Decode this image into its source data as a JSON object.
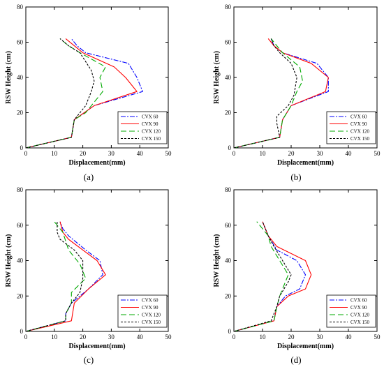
{
  "figure": {
    "panel_captions": [
      "(a)",
      "(b)",
      "(c)",
      "(d)"
    ]
  },
  "chart_data": [
    {
      "type": "line",
      "panel": "(a)",
      "xlabel": "Displacement(mm)",
      "ylabel": "RSW  Height (cm)",
      "xlim": [
        0,
        50
      ],
      "ylim": [
        0,
        80
      ],
      "xticks": [
        0,
        10,
        20,
        30,
        40,
        50
      ],
      "yticks": [
        0,
        20,
        40,
        60,
        80
      ],
      "legend_position": "bottom-right",
      "series": [
        {
          "name": "CVX 60",
          "color": "#0000ff",
          "dash": "dashdot",
          "points": [
            [
              0,
              0
            ],
            [
              16,
              6
            ],
            [
              17,
              16
            ],
            [
              24,
              24
            ],
            [
              41,
              32
            ],
            [
              39,
              40
            ],
            [
              36,
              48
            ],
            [
              21,
              54
            ],
            [
              18,
              58
            ],
            [
              16,
              62
            ]
          ]
        },
        {
          "name": "CVX 90",
          "color": "#ff0000",
          "dash": "solid",
          "points": [
            [
              0,
              0
            ],
            [
              16,
              6
            ],
            [
              17,
              16
            ],
            [
              24,
              24
            ],
            [
              39,
              32
            ],
            [
              35,
              40
            ],
            [
              31,
              46
            ],
            [
              20,
              54
            ],
            [
              17,
              58
            ],
            [
              14,
              62
            ]
          ]
        },
        {
          "name": "CVX 120",
          "color": "#00aa00",
          "dash": "longdash",
          "points": [
            [
              0,
              0
            ],
            [
              16,
              6
            ],
            [
              17,
              16
            ],
            [
              21,
              20
            ],
            [
              27,
              32
            ],
            [
              26,
              40
            ],
            [
              28,
              46
            ],
            [
              19,
              54
            ],
            [
              15,
              58
            ],
            [
              12,
              62
            ]
          ]
        },
        {
          "name": "CVX 150",
          "color": "#000000",
          "dash": "dotted",
          "points": [
            [
              0,
              0
            ],
            [
              16,
              6
            ],
            [
              17,
              16
            ],
            [
              21,
              24
            ],
            [
              23,
              32
            ],
            [
              24,
              38
            ],
            [
              23,
              44
            ],
            [
              19,
              54
            ],
            [
              15,
              58
            ],
            [
              12,
              62
            ]
          ]
        }
      ]
    },
    {
      "type": "line",
      "panel": "(b)",
      "xlabel": "Displacement(mm)",
      "ylabel": "RSW  Height (cm)",
      "xlim": [
        0,
        50
      ],
      "ylim": [
        0,
        80
      ],
      "xticks": [
        0,
        10,
        20,
        30,
        40,
        50
      ],
      "yticks": [
        0,
        20,
        40,
        60,
        80
      ],
      "legend_position": "bottom-right",
      "series": [
        {
          "name": "CVX 60",
          "color": "#0000ff",
          "dash": "dashdot",
          "points": [
            [
              0,
              0
            ],
            [
              16,
              6
            ],
            [
              17,
              16
            ],
            [
              20,
              24
            ],
            [
              33,
              32
            ],
            [
              33,
              40
            ],
            [
              29,
              48
            ],
            [
              17,
              54
            ],
            [
              14,
              58
            ],
            [
              13,
              62
            ]
          ]
        },
        {
          "name": "CVX 90",
          "color": "#ff0000",
          "dash": "solid",
          "points": [
            [
              0,
              0
            ],
            [
              16,
              6
            ],
            [
              17,
              16
            ],
            [
              20,
              24
            ],
            [
              32,
              32
            ],
            [
              33,
              40
            ],
            [
              27,
              48
            ],
            [
              17,
              54
            ],
            [
              14,
              58
            ],
            [
              12,
              62
            ]
          ]
        },
        {
          "name": "CVX 120",
          "color": "#00aa00",
          "dash": "longdash",
          "points": [
            [
              0,
              0
            ],
            [
              16,
              6
            ],
            [
              17,
              16
            ],
            [
              20,
              24
            ],
            [
              22,
              32
            ],
            [
              24,
              38
            ],
            [
              23,
              46
            ],
            [
              17,
              54
            ],
            [
              15,
              58
            ],
            [
              13,
              62
            ]
          ]
        },
        {
          "name": "CVX 150",
          "color": "#000000",
          "dash": "dotted",
          "points": [
            [
              0,
              0
            ],
            [
              16,
              6
            ],
            [
              15,
              14
            ],
            [
              15,
              18
            ],
            [
              19,
              24
            ],
            [
              21,
              30
            ],
            [
              22,
              40
            ],
            [
              20,
              48
            ],
            [
              16,
              54
            ],
            [
              14,
              58
            ],
            [
              13,
              62
            ]
          ]
        }
      ]
    },
    {
      "type": "line",
      "panel": "(c)",
      "xlabel": "Displacement(mm)",
      "ylabel": "RSW  Height (cm)",
      "xlim": [
        0,
        50
      ],
      "ylim": [
        0,
        80
      ],
      "xticks": [
        0,
        10,
        20,
        30,
        40,
        50
      ],
      "yticks": [
        0,
        20,
        40,
        60,
        80
      ],
      "legend_position": "bottom-right",
      "series": [
        {
          "name": "CVX 60",
          "color": "#0000ff",
          "dash": "dashdot",
          "points": [
            [
              0,
              0
            ],
            [
              14,
              6
            ],
            [
              14,
              10
            ],
            [
              16,
              16
            ],
            [
              22,
              24
            ],
            [
              27,
              32
            ],
            [
              26,
              40
            ],
            [
              21,
              46
            ],
            [
              15,
              54
            ],
            [
              13,
              58
            ],
            [
              12,
              62
            ]
          ]
        },
        {
          "name": "CVX 90",
          "color": "#ff0000",
          "dash": "solid",
          "points": [
            [
              0,
              0
            ],
            [
              16,
              6
            ],
            [
              17,
              16
            ],
            [
              22,
              24
            ],
            [
              28,
              32
            ],
            [
              25,
              40
            ],
            [
              20,
              46
            ],
            [
              15,
              52
            ],
            [
              13,
              56
            ],
            [
              12,
              62
            ]
          ]
        },
        {
          "name": "CVX 120",
          "color": "#00aa00",
          "dash": "longdash",
          "points": [
            [
              0,
              0
            ],
            [
              14,
              6
            ],
            [
              14,
              10
            ],
            [
              16,
              16
            ],
            [
              16,
              22
            ],
            [
              21,
              30
            ],
            [
              19,
              38
            ],
            [
              15,
              46
            ],
            [
              13,
              56
            ],
            [
              10,
              62
            ]
          ]
        },
        {
          "name": "CVX 150",
          "color": "#000000",
          "dash": "dotted",
          "points": [
            [
              0,
              0
            ],
            [
              14,
              6
            ],
            [
              14,
              10
            ],
            [
              16,
              16
            ],
            [
              19,
              22
            ],
            [
              20,
              30
            ],
            [
              20,
              40
            ],
            [
              17,
              46
            ],
            [
              12,
              52
            ],
            [
              11,
              56
            ],
            [
              11,
              62
            ]
          ]
        }
      ]
    },
    {
      "type": "line",
      "panel": "(d)",
      "xlabel": "Displacement(mm)",
      "ylabel": "RSW  Height (cm)",
      "xlim": [
        0,
        50
      ],
      "ylim": [
        0,
        80
      ],
      "xticks": [
        0,
        10,
        20,
        30,
        40,
        50
      ],
      "yticks": [
        0,
        20,
        40,
        60,
        80
      ],
      "legend_position": "bottom-right",
      "series": [
        {
          "name": "CVX 60",
          "color": "#0000ff",
          "dash": "dashdot",
          "points": [
            [
              0,
              0
            ],
            [
              14,
              6
            ],
            [
              15,
              14
            ],
            [
              18,
              20
            ],
            [
              23,
              24
            ],
            [
              25,
              32
            ],
            [
              22,
              40
            ],
            [
              15,
              46
            ],
            [
              12,
              54
            ],
            [
              11,
              58
            ],
            [
              10,
              62
            ]
          ]
        },
        {
          "name": "CVX 90",
          "color": "#ff0000",
          "dash": "solid",
          "points": [
            [
              0,
              0
            ],
            [
              14,
              6
            ],
            [
              15,
              14
            ],
            [
              19,
              20
            ],
            [
              25,
              24
            ],
            [
              27,
              32
            ],
            [
              25,
              40
            ],
            [
              15,
              48
            ],
            [
              12,
              54
            ],
            [
              11,
              58
            ],
            [
              10,
              62
            ]
          ]
        },
        {
          "name": "CVX 120",
          "color": "#00aa00",
          "dash": "longdash",
          "points": [
            [
              0,
              0
            ],
            [
              14,
              6
            ],
            [
              15,
              14
            ],
            [
              16,
              20
            ],
            [
              18,
              28
            ],
            [
              19,
              32
            ],
            [
              16,
              40
            ],
            [
              13,
              48
            ],
            [
              12,
              54
            ],
            [
              10,
              58
            ],
            [
              8,
              62
            ]
          ]
        },
        {
          "name": "CVX 150",
          "color": "#000000",
          "dash": "dotted",
          "points": [
            [
              0,
              0
            ],
            [
              13,
              6
            ],
            [
              15,
              14
            ],
            [
              16,
              20
            ],
            [
              19,
              28
            ],
            [
              20,
              32
            ],
            [
              17,
              40
            ],
            [
              14,
              48
            ],
            [
              12,
              54
            ],
            [
              11,
              58
            ],
            [
              10,
              62
            ]
          ]
        }
      ]
    }
  ]
}
